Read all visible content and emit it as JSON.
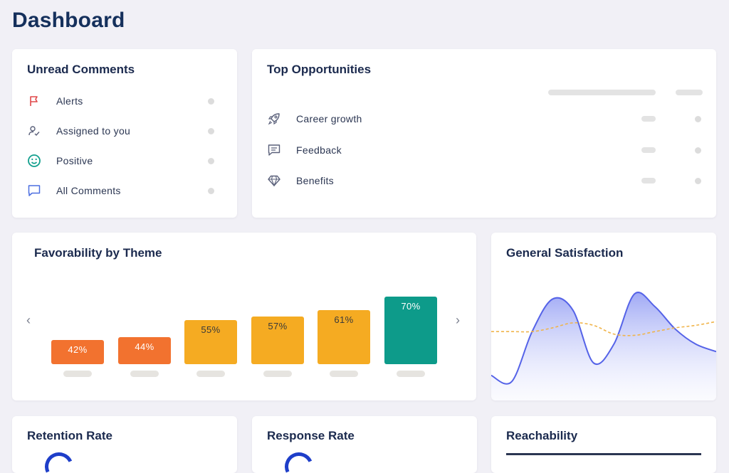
{
  "page": {
    "title": "Dashboard"
  },
  "unread": {
    "title": "Unread Comments",
    "items": [
      {
        "label": "Alerts",
        "icon": "flag-icon",
        "color": "#e0484a"
      },
      {
        "label": "Assigned to you",
        "icon": "user-check-icon",
        "color": "#5a607a"
      },
      {
        "label": "Positive",
        "icon": "smiley-icon",
        "color": "#13a08e"
      },
      {
        "label": "All Comments",
        "icon": "comment-icon",
        "color": "#4c6ee0"
      }
    ]
  },
  "opportunities": {
    "title": "Top Opportunities",
    "items": [
      {
        "label": "Career growth",
        "icon": "rocket-icon"
      },
      {
        "label": "Feedback",
        "icon": "message-icon"
      },
      {
        "label": "Benefits",
        "icon": "diamond-icon"
      }
    ]
  },
  "favorability": {
    "title": "Favorability by Theme",
    "prev": "‹",
    "next": "›",
    "chart_data": {
      "type": "bar",
      "values": [
        42,
        44,
        55,
        57,
        61,
        70
      ],
      "labels": [
        "42%",
        "44%",
        "55%",
        "57%",
        "61%",
        "70%"
      ],
      "colors": [
        "#f2722f",
        "#f2722f",
        "#f5ab22",
        "#f5ab22",
        "#f5ab22",
        "#0d9b8a"
      ],
      "ylim": [
        0,
        100
      ]
    }
  },
  "satisfaction": {
    "title": "General Satisfaction",
    "chart_data": {
      "type": "area",
      "series": [
        {
          "values": [
            20,
            15,
            55,
            81,
            72,
            30,
            45,
            85,
            75,
            57,
            45,
            39
          ],
          "color": "#5563e8"
        },
        {
          "values": [
            55,
            55,
            55,
            58,
            62,
            60,
            53,
            52,
            55,
            58,
            60,
            63
          ],
          "color": "#f0b44a"
        }
      ],
      "ylim": [
        0,
        100
      ]
    }
  },
  "retention": {
    "title": "Retention Rate"
  },
  "response": {
    "title": "Response Rate"
  },
  "reachability": {
    "title": "Reachability"
  }
}
